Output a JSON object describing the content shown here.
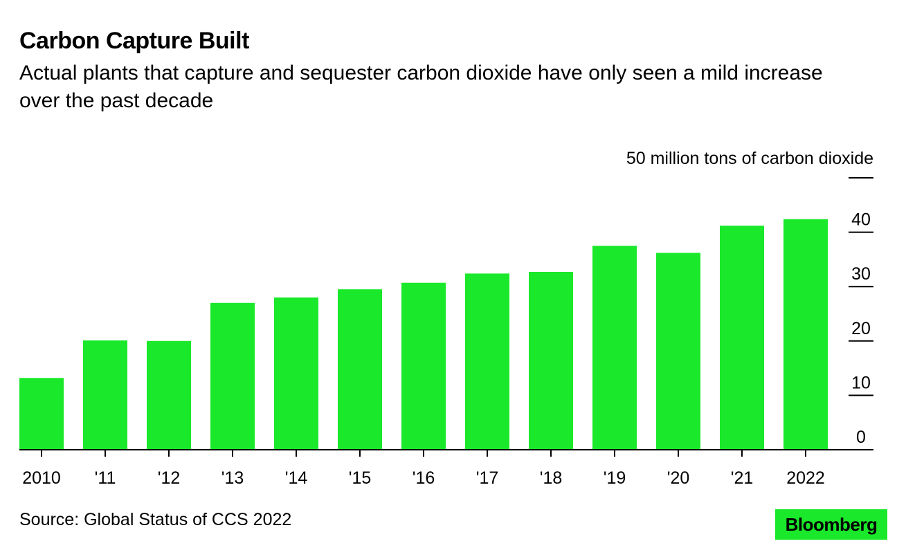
{
  "header": {
    "title": "Carbon Capture Built",
    "subtitle": "Actual plants that capture and sequester carbon dioxide have only seen a mild increase over the past decade"
  },
  "footer": {
    "source": "Source: Global Status of CCS 2022",
    "logo_text": "Bloomberg"
  },
  "colors": {
    "bar": "#1ae82a",
    "axis": "#000000",
    "text": "#000000",
    "logo_bg": "#1ae82a"
  },
  "chart_data": {
    "type": "bar",
    "categories": [
      "2010",
      "'11",
      "'12",
      "'13",
      "'14",
      "'15",
      "'16",
      "'17",
      "'18",
      "'19",
      "'20",
      "'21",
      "2022"
    ],
    "values": [
      13.2,
      20.1,
      20.0,
      27.0,
      28.0,
      29.5,
      30.7,
      32.4,
      32.7,
      37.5,
      36.2,
      41.2,
      42.4
    ],
    "ylabel": "50 million tons of carbon dioxide",
    "y_ticks": [
      "0",
      "10",
      "20",
      "30",
      "40",
      "50"
    ],
    "ylim": [
      0,
      50
    ],
    "y_axis_side": "right",
    "grid": false
  }
}
